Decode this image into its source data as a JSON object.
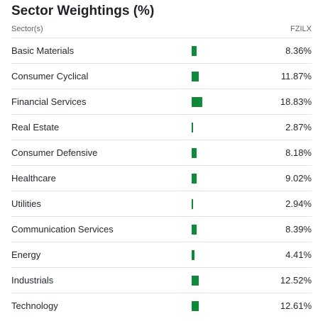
{
  "widget": {
    "title": "Sector Weightings (%)",
    "column_sector": "Sector(s)",
    "column_fund": "FZILX"
  },
  "colors": {
    "bar": "#0f8a3a",
    "divider": "#e0e4e9"
  },
  "sectors": [
    {
      "label": "Basic Materials",
      "value_text": "8.36%",
      "value": 8.36
    },
    {
      "label": "Consumer Cyclical",
      "value_text": "11.87%",
      "value": 11.87
    },
    {
      "label": "Financial Services",
      "value_text": "18.83%",
      "value": 18.83
    },
    {
      "label": "Real Estate",
      "value_text": "2.87%",
      "value": 2.87
    },
    {
      "label": "Consumer Defensive",
      "value_text": "8.18%",
      "value": 8.18
    },
    {
      "label": "Healthcare",
      "value_text": "9.02%",
      "value": 9.02
    },
    {
      "label": "Utilities",
      "value_text": "2.94%",
      "value": 2.94
    },
    {
      "label": "Communication Services",
      "value_text": "8.39%",
      "value": 8.39
    },
    {
      "label": "Energy",
      "value_text": "4.41%",
      "value": 4.41
    },
    {
      "label": "Industrials",
      "value_text": "12.52%",
      "value": 12.52
    },
    {
      "label": "Technology",
      "value_text": "12.61%",
      "value": 12.61
    }
  ]
}
